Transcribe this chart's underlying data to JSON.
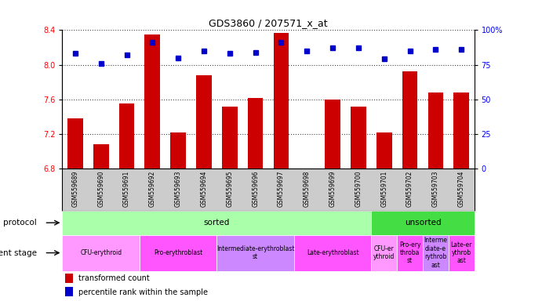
{
  "title": "GDS3860 / 207571_x_at",
  "samples": [
    "GSM559689",
    "GSM559690",
    "GSM559691",
    "GSM559692",
    "GSM559693",
    "GSM559694",
    "GSM559695",
    "GSM559696",
    "GSM559697",
    "GSM559698",
    "GSM559699",
    "GSM559700",
    "GSM559701",
    "GSM559702",
    "GSM559703",
    "GSM559704"
  ],
  "transformed_count": [
    7.38,
    7.08,
    7.55,
    8.35,
    7.22,
    7.88,
    7.52,
    7.62,
    8.37,
    6.8,
    7.6,
    7.52,
    7.22,
    7.92,
    7.68,
    7.68
  ],
  "percentile_rank": [
    83,
    76,
    82,
    91,
    80,
    85,
    83,
    84,
    91,
    85,
    87,
    87,
    79,
    85,
    86,
    86
  ],
  "ylim": [
    6.8,
    8.4
  ],
  "yticks": [
    6.8,
    7.2,
    7.6,
    8.0,
    8.4
  ],
  "y2ticks": [
    0,
    25,
    50,
    75,
    100
  ],
  "y2labels": [
    "0",
    "25",
    "50",
    "75",
    "100%"
  ],
  "bar_color": "#cc0000",
  "dot_color": "#0000cc",
  "protocol_sorted_color": "#aaffaa",
  "protocol_unsorted_color": "#44dd44",
  "dev_regions": [
    {
      "start": 0,
      "end": 2,
      "label": "CFU-erythroid",
      "color": "#ff99ff"
    },
    {
      "start": 3,
      "end": 5,
      "label": "Pro-erythroblast",
      "color": "#ff55ff"
    },
    {
      "start": 6,
      "end": 8,
      "label": "Intermediate-erythroblast\nst",
      "color": "#cc88ff"
    },
    {
      "start": 9,
      "end": 11,
      "label": "Late-erythroblast",
      "color": "#ff55ff"
    },
    {
      "start": 12,
      "end": 12,
      "label": "CFU-er\nythroid",
      "color": "#ff99ff"
    },
    {
      "start": 13,
      "end": 13,
      "label": "Pro-ery\nthroba\nst",
      "color": "#ff55ff"
    },
    {
      "start": 14,
      "end": 14,
      "label": "Interme\ndiate-e\nrythrob\nast",
      "color": "#cc88ff"
    },
    {
      "start": 15,
      "end": 15,
      "label": "Late-er\nythrob\nast",
      "color": "#ff55ff"
    }
  ],
  "legend_bar_label": "transformed count",
  "legend_dot_label": "percentile rank within the sample",
  "dotted_line_color": "#444444",
  "sample_label_bg": "#cccccc",
  "axis_bg_color": "#ffffff"
}
